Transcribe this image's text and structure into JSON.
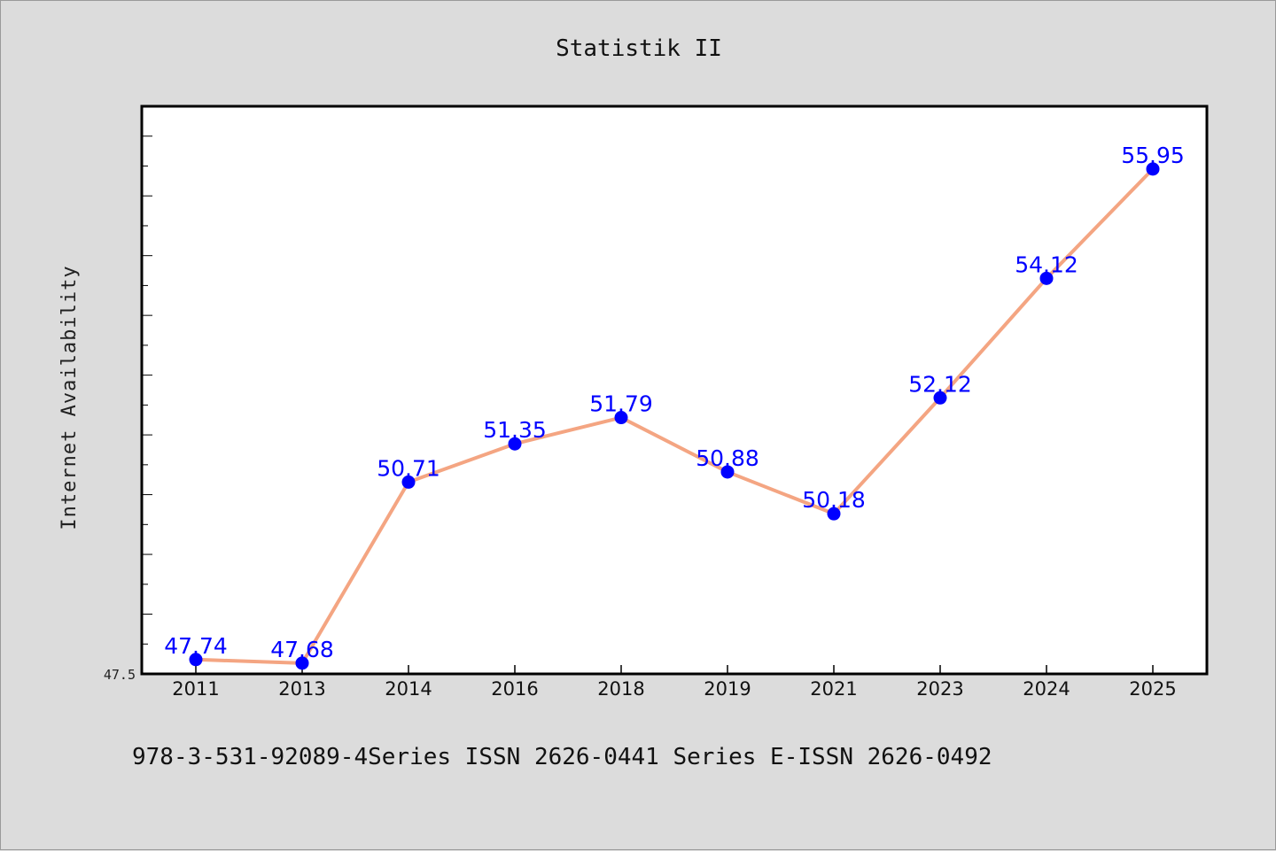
{
  "chart_data": {
    "type": "line",
    "title": "Statistik II",
    "xlabel": "",
    "ylabel": "Internet Availability",
    "categories": [
      "2011",
      "2013",
      "2014",
      "2016",
      "2018",
      "2019",
      "2021",
      "2023",
      "2024",
      "2025"
    ],
    "series": [
      {
        "values": [
          47.74,
          47.68,
          50.71,
          51.35,
          51.79,
          50.88,
          50.18,
          52.12,
          54.12,
          55.95
        ],
        "labels": [
          "47.74",
          "47.68",
          "50.71",
          "51.35",
          "51.79",
          "50.88",
          "50.18",
          "52.12",
          "54.12",
          "55.95"
        ]
      }
    ],
    "ylim": [
      47.5,
      57.0
    ],
    "yticks": [
      "47.5"
    ],
    "grid": false,
    "colors": {
      "line": "#f4a582",
      "marker": "#0000ff",
      "label": "#0000ff"
    }
  },
  "footer": {
    "text": "978-3-531-92089-4Series ISSN 2626-0441 Series E-ISSN 2626-0492"
  }
}
